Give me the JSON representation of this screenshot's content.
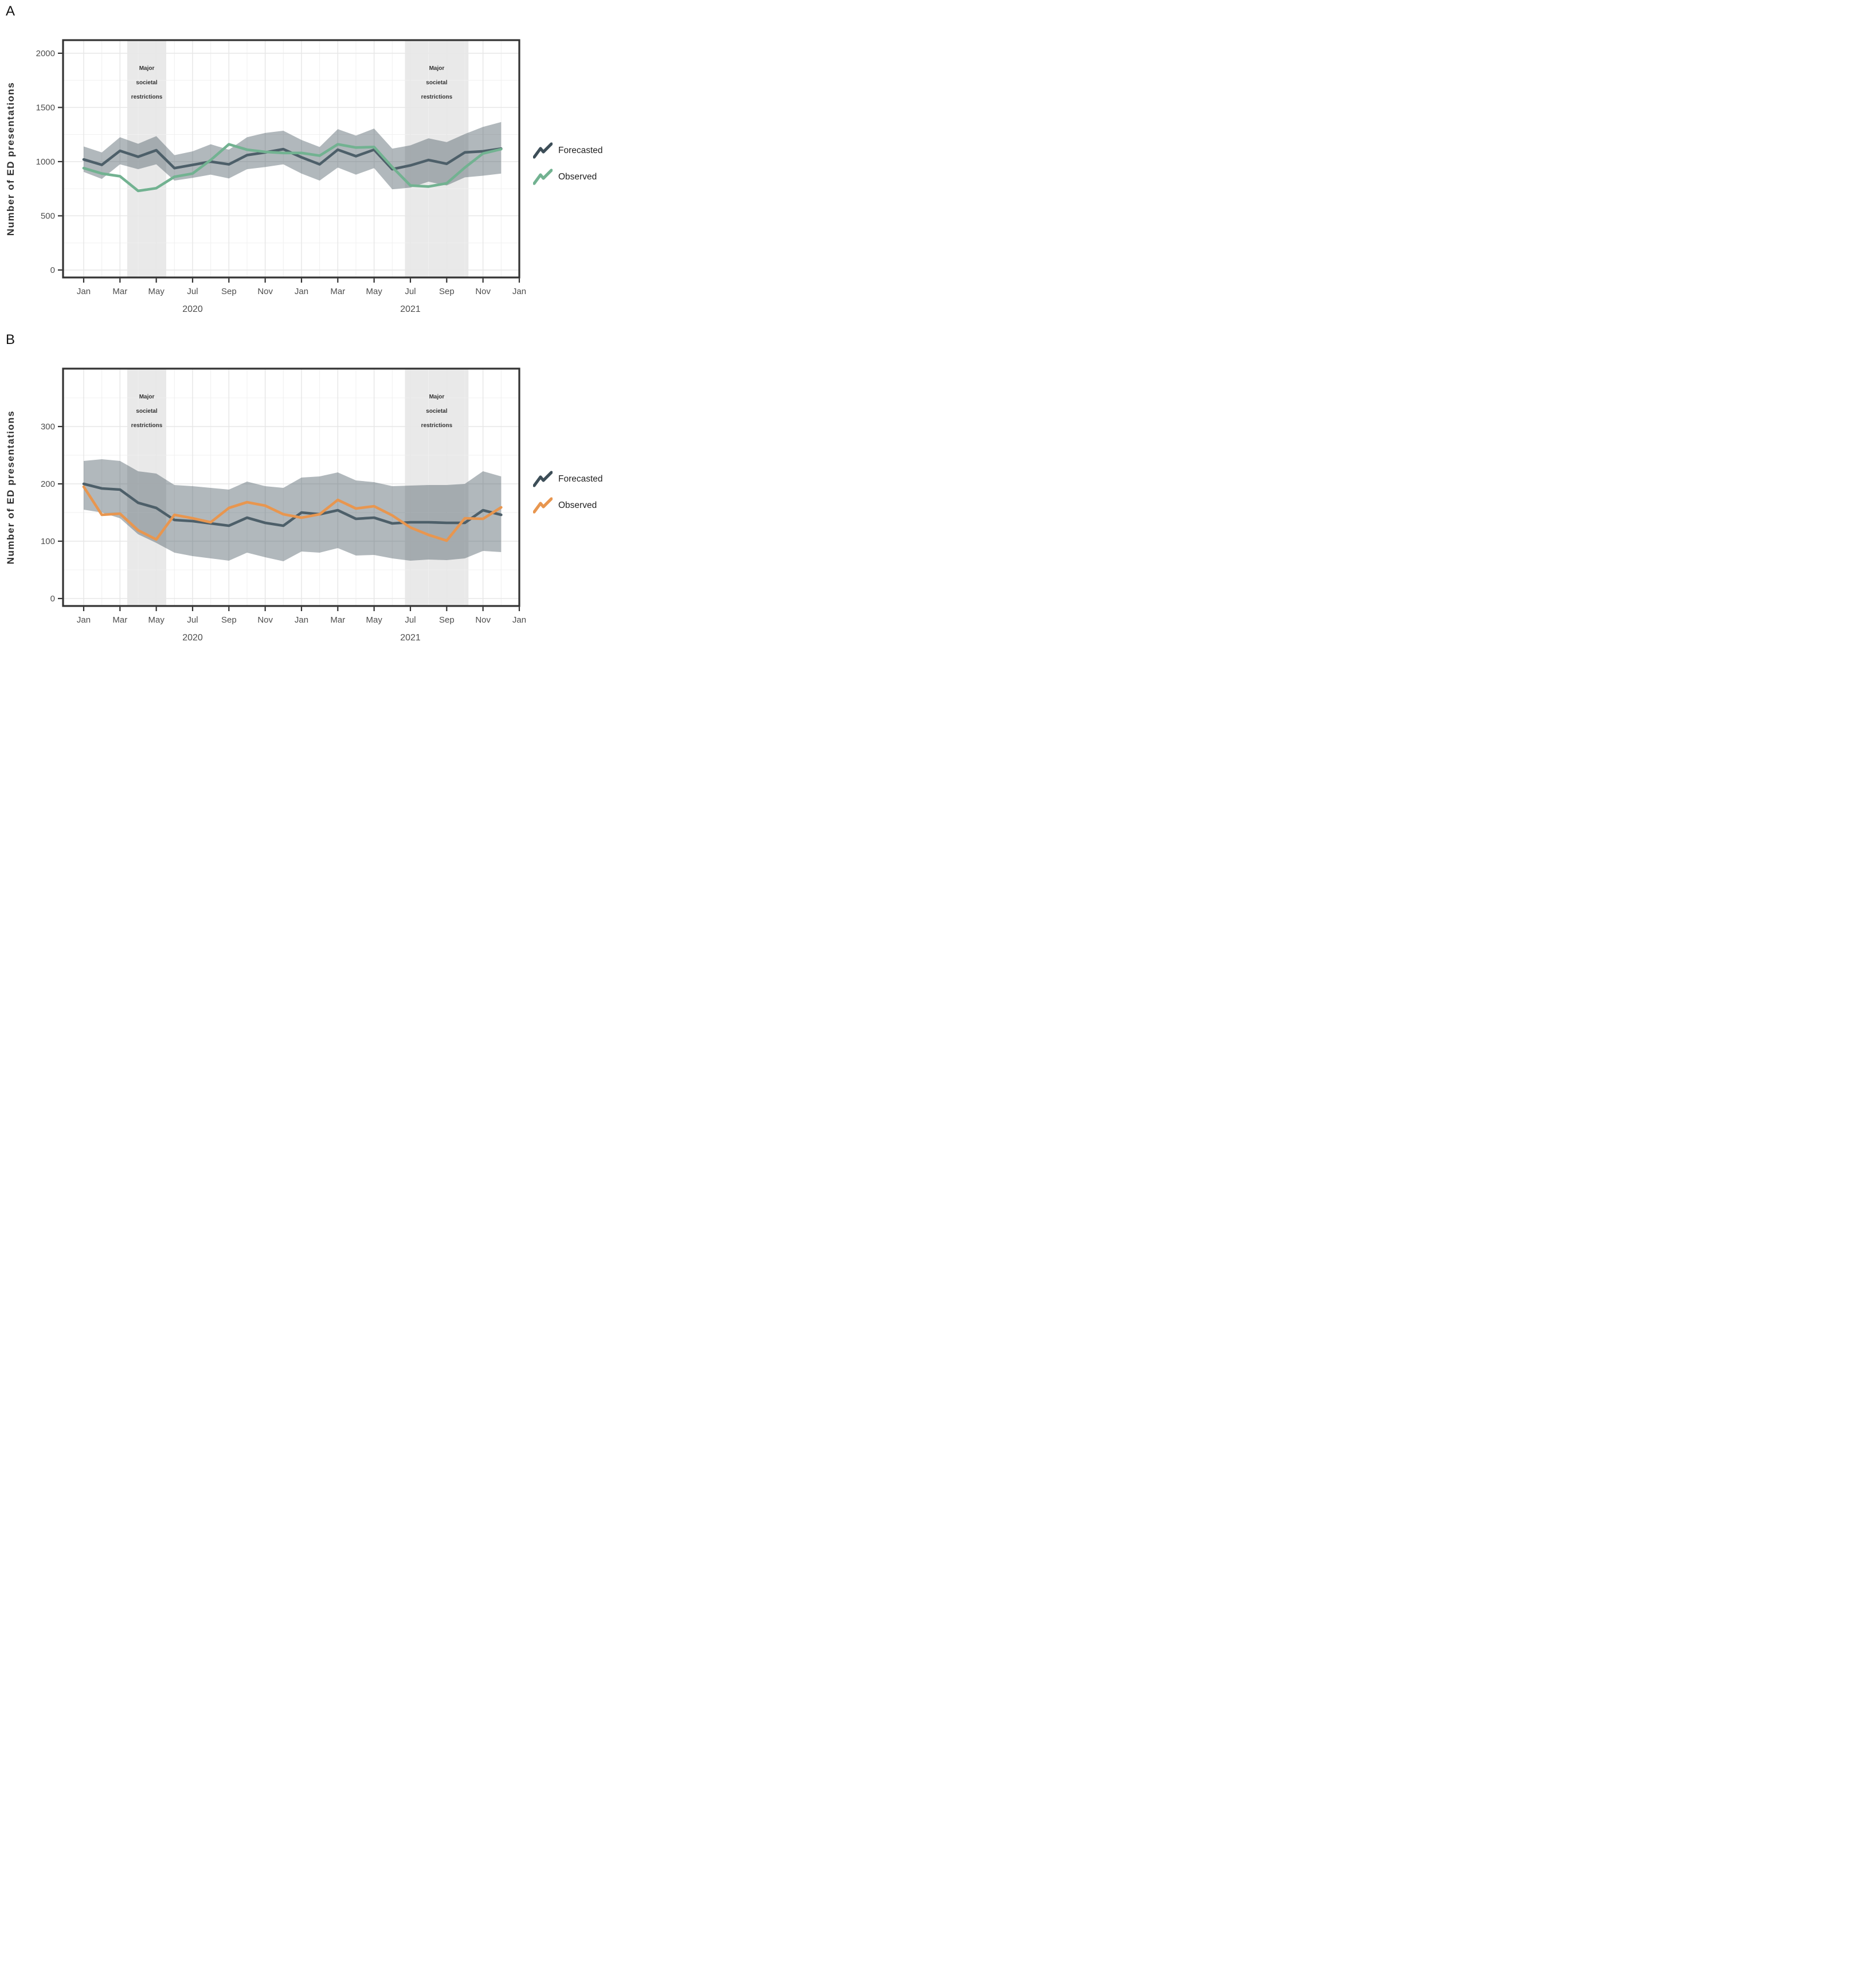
{
  "page": {
    "panel_a_label": "A",
    "panel_b_label": "B",
    "y_axis_title": "Number of ED presentations",
    "legend": {
      "forecasted": "Forecasted",
      "observed": "Observed"
    },
    "restriction_label_lines": [
      "Major",
      "societal",
      "restrictions"
    ],
    "colors": {
      "forecasted_line": "#4d5f69",
      "forecasted_legend": "#3d4e58",
      "observed_green": "#72b291",
      "observed_orange": "#e8964f",
      "confidence_band": "#46565f",
      "restriction_band": "#e9e9e9",
      "grid_major": "#e7e7e7",
      "grid_minor": "#f0f0f0",
      "axis": "#333333",
      "tick_text": "#4d4d4d",
      "axis_title_text": "#2e2e2e",
      "annotation_text": "#333333"
    }
  },
  "chart_data": [
    {
      "panel": "A",
      "type": "line",
      "title": "",
      "xlabel": "",
      "ylabel": "Number of ED presentations",
      "x_tick_labels": [
        "Jan",
        "Mar",
        "May",
        "Jul",
        "Sep",
        "Nov",
        "Jan",
        "Mar",
        "May",
        "Jul",
        "Sep",
        "Nov",
        "Jan"
      ],
      "year_labels": [
        {
          "text": "2020",
          "month_index": 6
        },
        {
          "text": "2021",
          "month_index": 18
        }
      ],
      "yticks": [
        0,
        500,
        1000,
        1500,
        2000
      ],
      "yticks_minor": [
        250,
        750,
        1250,
        1750
      ],
      "ylim": [
        -69,
        2121
      ],
      "grid": true,
      "legend_position": "right",
      "observed_color": "#72b291",
      "months": [
        "Jan 2020",
        "Feb 2020",
        "Mar 2020",
        "Apr 2020",
        "May 2020",
        "Jun 2020",
        "Jul 2020",
        "Aug 2020",
        "Sep 2020",
        "Oct 2020",
        "Nov 2020",
        "Dec 2020",
        "Jan 2021",
        "Feb 2021",
        "Mar 2021",
        "Apr 2021",
        "May 2021",
        "Jun 2021",
        "Jul 2021",
        "Aug 2021",
        "Sep 2021",
        "Oct 2021",
        "Nov 2021",
        "Dec 2021"
      ],
      "series": [
        {
          "name": "Forecasted",
          "values": [
            1020,
            970,
            1100,
            1045,
            1105,
            940,
            970,
            1000,
            975,
            1060,
            1085,
            1115,
            1040,
            975,
            1110,
            1050,
            1110,
            930,
            965,
            1015,
            980,
            1085,
            1095,
            1120
          ]
        },
        {
          "name": "Observed",
          "values": [
            940,
            890,
            865,
            730,
            755,
            860,
            890,
            1015,
            1160,
            1110,
            1090,
            1080,
            1080,
            1055,
            1160,
            1130,
            1135,
            950,
            780,
            770,
            800,
            945,
            1075,
            1115
          ]
        },
        {
          "name": "Forecast upper bound",
          "values": [
            1140,
            1085,
            1225,
            1165,
            1235,
            1060,
            1095,
            1160,
            1110,
            1225,
            1265,
            1285,
            1200,
            1135,
            1300,
            1240,
            1305,
            1120,
            1150,
            1215,
            1180,
            1255,
            1320,
            1365
          ]
        },
        {
          "name": "Forecast lower bound",
          "values": [
            905,
            840,
            975,
            930,
            975,
            825,
            850,
            880,
            845,
            930,
            950,
            975,
            890,
            825,
            945,
            880,
            940,
            745,
            760,
            815,
            780,
            855,
            870,
            890
          ]
        }
      ],
      "shaded_regions": [
        {
          "label": "Major societal restrictions",
          "from_month_index": 2.4,
          "to_month_index": 4.55
        },
        {
          "label": "Major societal restrictions",
          "from_month_index": 17.7,
          "to_month_index": 21.2
        }
      ]
    },
    {
      "panel": "B",
      "type": "line",
      "title": "",
      "xlabel": "",
      "ylabel": "Number of ED presentations",
      "x_tick_labels": [
        "Jan",
        "Mar",
        "May",
        "Jul",
        "Sep",
        "Nov",
        "Jan",
        "Mar",
        "May",
        "Jul",
        "Sep",
        "Nov",
        "Jan"
      ],
      "year_labels": [
        {
          "text": "2020",
          "month_index": 6
        },
        {
          "text": "2021",
          "month_index": 18
        }
      ],
      "yticks": [
        0,
        100,
        200,
        300
      ],
      "yticks_minor": [
        50,
        150,
        250,
        350
      ],
      "ylim": [
        -13,
        401
      ],
      "grid": true,
      "legend_position": "right",
      "observed_color": "#e8964f",
      "months": [
        "Jan 2020",
        "Feb 2020",
        "Mar 2020",
        "Apr 2020",
        "May 2020",
        "Jun 2020",
        "Jul 2020",
        "Aug 2020",
        "Sep 2020",
        "Oct 2020",
        "Nov 2020",
        "Dec 2020",
        "Jan 2021",
        "Feb 2021",
        "Mar 2021",
        "Apr 2021",
        "May 2021",
        "Jun 2021",
        "Jul 2021",
        "Aug 2021",
        "Sep 2021",
        "Oct 2021",
        "Nov 2021",
        "Dec 2021"
      ],
      "series": [
        {
          "name": "Forecasted",
          "values": [
            200,
            192,
            190,
            167,
            158,
            137,
            135,
            131,
            127,
            141,
            132,
            127,
            150,
            147,
            154,
            139,
            141,
            131,
            133,
            133,
            132,
            132,
            154,
            146
          ]
        },
        {
          "name": "Observed",
          "values": [
            195,
            146,
            148,
            119,
            103,
            146,
            140,
            133,
            158,
            168,
            162,
            147,
            141,
            147,
            172,
            157,
            161,
            145,
            124,
            111,
            101,
            140,
            139,
            159
          ]
        },
        {
          "name": "Forecast upper bound",
          "values": [
            240,
            243,
            240,
            222,
            218,
            198,
            196,
            193,
            190,
            204,
            196,
            193,
            211,
            213,
            220,
            206,
            203,
            196,
            197,
            198,
            198,
            200,
            222,
            213
          ]
        },
        {
          "name": "Forecast lower bound",
          "values": [
            155,
            150,
            140,
            112,
            97,
            80,
            74,
            70,
            66,
            80,
            72,
            65,
            82,
            80,
            88,
            75,
            76,
            70,
            66,
            68,
            67,
            70,
            83,
            81
          ]
        }
      ],
      "shaded_regions": [
        {
          "label": "Major societal restrictions",
          "from_month_index": 2.4,
          "to_month_index": 4.55
        },
        {
          "label": "Major societal restrictions",
          "from_month_index": 17.7,
          "to_month_index": 21.2
        }
      ]
    }
  ]
}
